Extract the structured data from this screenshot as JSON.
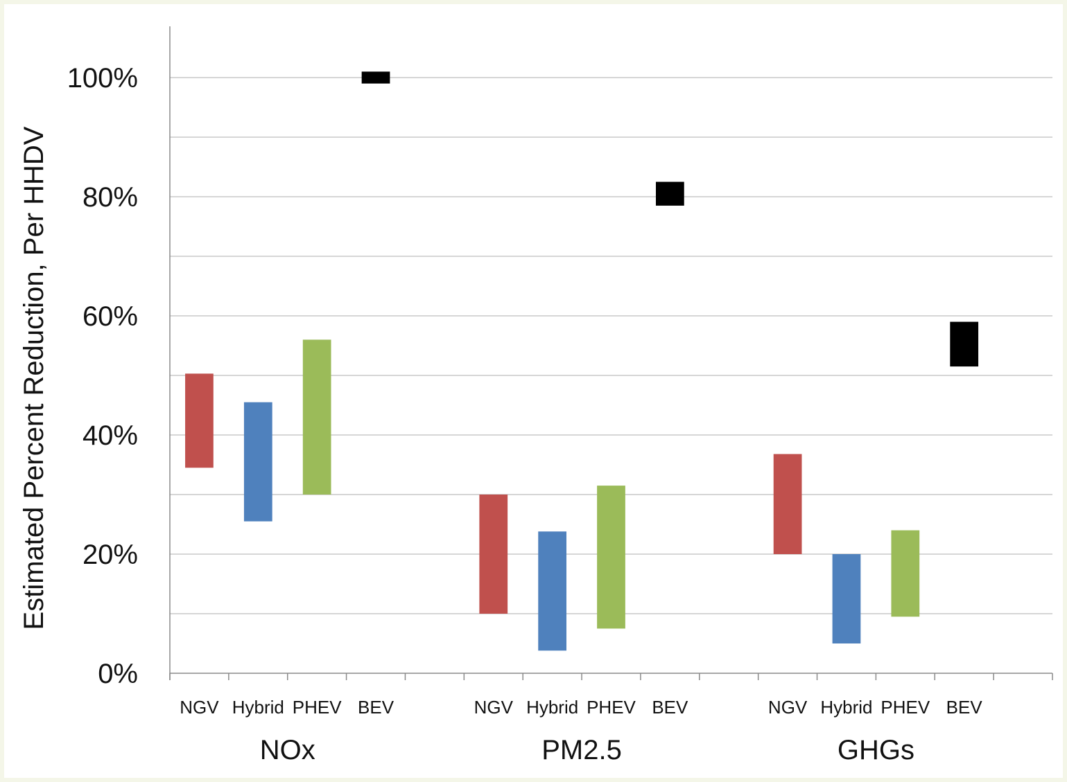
{
  "chart_data": {
    "type": "bar",
    "subtype": "floating-range",
    "title": "",
    "xlabel": "",
    "ylabel": "Estimated Percent Reduction, Per HHDV",
    "ylim": [
      0,
      100
    ],
    "yticks": [
      "0%",
      "20%",
      "40%",
      "60%",
      "80%",
      "100%"
    ],
    "grid": true,
    "groups": [
      {
        "name": "NOx",
        "bars": [
          {
            "label": "NGV",
            "low": 34.5,
            "high": 50.3,
            "color": "#c0504d"
          },
          {
            "label": "Hybrid",
            "low": 25.5,
            "high": 45.5,
            "color": "#4f81bd"
          },
          {
            "label": "PHEV",
            "low": 30,
            "high": 56,
            "color": "#9bbb59"
          },
          {
            "label": "BEV",
            "low": 99,
            "high": 101,
            "color": "#000000"
          }
        ]
      },
      {
        "name": "PM2.5",
        "bars": [
          {
            "label": "NGV",
            "low": 10,
            "high": 30,
            "color": "#c0504d"
          },
          {
            "label": "Hybrid",
            "low": 3.8,
            "high": 23.8,
            "color": "#4f81bd"
          },
          {
            "label": "PHEV",
            "low": 7.5,
            "high": 31.5,
            "color": "#9bbb59"
          },
          {
            "label": "BEV",
            "low": 78.5,
            "high": 82.5,
            "color": "#000000"
          }
        ]
      },
      {
        "name": "GHGs",
        "bars": [
          {
            "label": "NGV",
            "low": 20,
            "high": 36.8,
            "color": "#c0504d"
          },
          {
            "label": "Hybrid",
            "low": 5,
            "high": 20,
            "color": "#4f81bd"
          },
          {
            "label": "PHEV",
            "low": 9.5,
            "high": 24,
            "color": "#9bbb59"
          },
          {
            "label": "BEV",
            "low": 51.5,
            "high": 59,
            "color": "#000000"
          }
        ]
      }
    ]
  }
}
